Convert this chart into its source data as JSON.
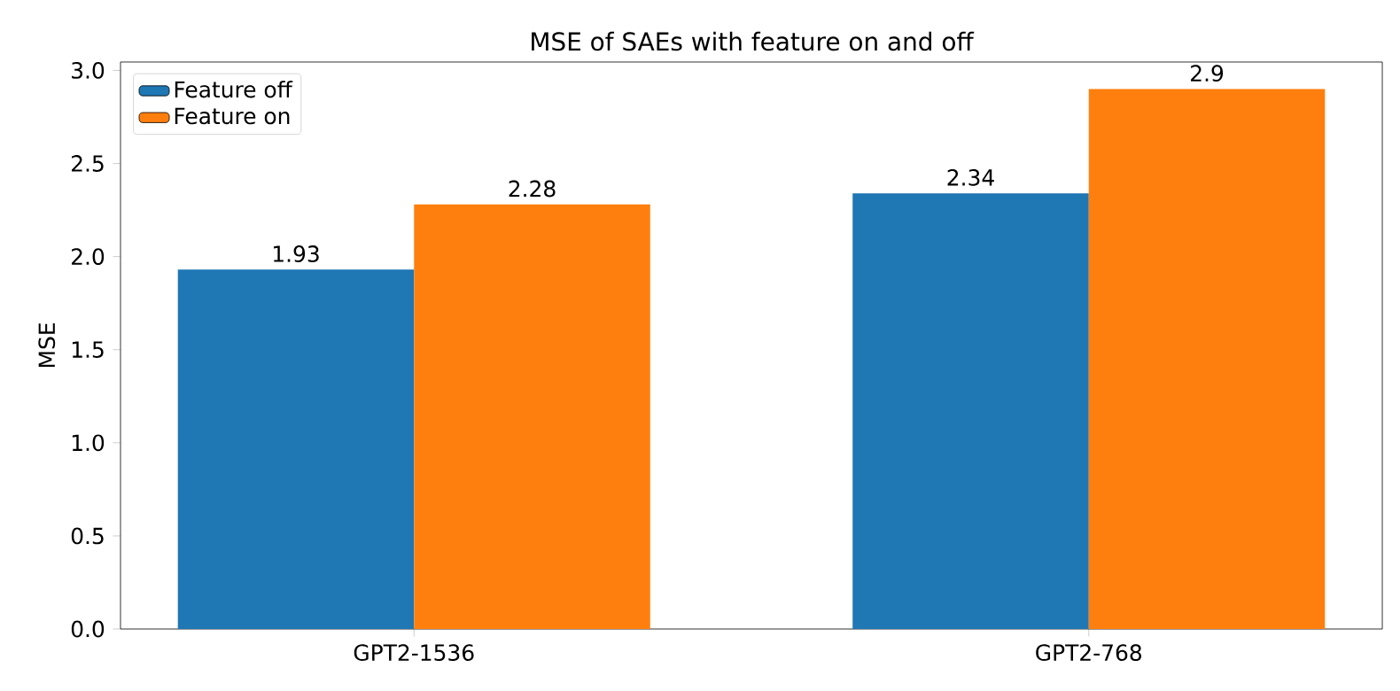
{
  "chart_data": {
    "type": "bar",
    "title": "MSE of SAEs with feature on and off",
    "ylabel": "MSE",
    "categories": [
      "GPT2-1536",
      "GPT2-768"
    ],
    "series": [
      {
        "name": "Feature off",
        "color": "#1f77b4",
        "values": [
          1.93,
          2.34
        ]
      },
      {
        "name": "Feature on",
        "color": "#ff7f0e",
        "values": [
          2.28,
          2.9
        ]
      }
    ],
    "ylim": [
      0,
      3.045
    ],
    "yticks": [
      {
        "value": 0,
        "label": "0.0"
      },
      {
        "value": 0.5,
        "label": "0.5"
      },
      {
        "value": 1,
        "label": "1.0"
      },
      {
        "value": 1.5,
        "label": "1.5"
      },
      {
        "value": 2,
        "label": "2.0"
      },
      {
        "value": 2.5,
        "label": "2.5"
      },
      {
        "value": 3,
        "label": "3.0"
      }
    ],
    "data_labels": true,
    "legend": "top left",
    "grid": false
  }
}
